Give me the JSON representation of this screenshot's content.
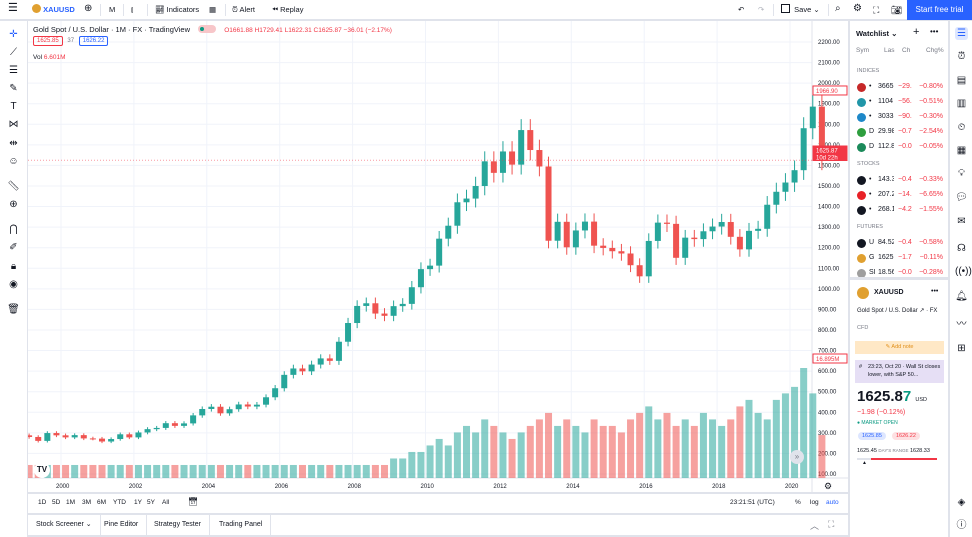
{
  "topbar": {
    "symbol": "XAUUSD",
    "interval": "M",
    "indicators": "Indicators",
    "alert": "Alert",
    "replay": "Replay",
    "save": "Save",
    "start_trial": "Start free trial"
  },
  "header": {
    "title": "Gold Spot / U.S. Dollar · 1M · FX · TradingView",
    "o": "O1661.88",
    "h": "H1729.41",
    "l": "L1622.31",
    "c": "C1625.87",
    "change": "−36.01 (−2.17%)",
    "bid": "1625.85",
    "spread": "37",
    "ask": "1626.22",
    "vol_label": "Vol",
    "vol_value": "6.601M"
  },
  "price_axis": {
    "labels": [
      "2200.00",
      "2100.00",
      "2000.00",
      "1900.00",
      "1800.00",
      "1700.00",
      "1600.00",
      "1500.00",
      "1400.00",
      "1300.00",
      "1200.00",
      "1100.00",
      "1000.00",
      "900.00",
      "800.00",
      "700.00",
      "600.00",
      "500.00",
      "400.00",
      "300.00",
      "200.00",
      "100.00"
    ],
    "high_marker": "1966.90",
    "current_price": "1625.87",
    "countdown": "10d 22h",
    "volume_marker": "16.895M"
  },
  "time_axis": {
    "labels": [
      "2000",
      "2002",
      "2004",
      "2006",
      "2008",
      "2010",
      "2012",
      "2014",
      "2016",
      "2018",
      "2020"
    ]
  },
  "range_bar": {
    "ranges": [
      "1D",
      "5D",
      "1M",
      "3M",
      "6M",
      "YTD",
      "1Y",
      "5Y",
      "All"
    ],
    "clock": "23:21:51 (UTC)",
    "pct": "%",
    "log": "log",
    "auto": "auto"
  },
  "bottom_tabs": [
    "Stock Screener",
    "Pine Editor",
    "Strategy Tester",
    "Trading Panel"
  ],
  "colors": {
    "up": "#26a69a",
    "down": "#ef5350",
    "accent": "#2962ff"
  },
  "chart_data": {
    "type": "candlestick",
    "x_unit": "quarter",
    "start": "1999 Q1",
    "ylim": [
      100,
      2200
    ],
    "yscale": "linear",
    "grid": true,
    "closes": [
      280,
      261,
      299,
      288,
      278,
      289,
      273,
      272,
      258,
      270,
      293,
      278,
      302,
      318,
      324,
      347,
      334,
      346,
      385,
      416,
      427,
      395,
      415,
      438,
      428,
      437,
      473,
      517,
      582,
      613,
      599,
      632,
      662,
      650,
      743,
      834,
      917,
      930,
      880,
      869,
      916,
      927,
      1008,
      1096,
      1113,
      1244,
      1307,
      1421,
      1439,
      1500,
      1620,
      1564,
      1668,
      1604,
      1772,
      1675,
      1595,
      1234,
      1326,
      1202,
      1284,
      1327,
      1210,
      1199,
      1183,
      1172,
      1115,
      1061,
      1233,
      1322,
      1316,
      1151,
      1249,
      1242,
      1280,
      1303,
      1325,
      1253,
      1192,
      1282,
      1292,
      1409,
      1472,
      1517,
      1577,
      1781,
      1886,
      1625.87
    ],
    "first_open": 288,
    "volume_millions": [
      2,
      2,
      2,
      2,
      2,
      2,
      2,
      2,
      2,
      2,
      2,
      2,
      2,
      2,
      2,
      2,
      2,
      2,
      2,
      2,
      2,
      2,
      2,
      2,
      2,
      2,
      2,
      2,
      2,
      2,
      2,
      2,
      2,
      2,
      2,
      2,
      2,
      2,
      2,
      2,
      3,
      3,
      4,
      4,
      5,
      6,
      5,
      7,
      8,
      7,
      9,
      8,
      7,
      6,
      7,
      8,
      9,
      10,
      8,
      9,
      8,
      7,
      9,
      8,
      8,
      7,
      9,
      10,
      11,
      9,
      10,
      8,
      9,
      8,
      10,
      9,
      8,
      9,
      11,
      12,
      10,
      9,
      12,
      13,
      14,
      16.9,
      13,
      6.6
    ]
  },
  "watchlist": {
    "title": "Watchlist",
    "columns": [
      "Sym",
      "Las",
      "Ch",
      "Chg%"
    ],
    "sections": [
      {
        "name": "INDICES",
        "items": [
          {
            "sym": "•",
            "last": "3665",
            "ch": "−29.",
            "pct": "−0.80%",
            "color": "#c62828"
          },
          {
            "sym": "•",
            "last": "1104",
            "ch": "−56.",
            "pct": "−0.51%",
            "color": "#2196a8"
          },
          {
            "sym": "•",
            "last": "3033",
            "ch": "−90.",
            "pct": "−0.30%",
            "color": "#1e88c8"
          },
          {
            "sym": "D",
            "last": "29.98",
            "ch": "−0.7",
            "pct": "−2.54%",
            "color": "#2e9e3e"
          },
          {
            "sym": "D",
            "last": "112.8",
            "ch": "−0.0",
            "pct": "−0.05%",
            "color": "#1b8a5a"
          }
        ]
      },
      {
        "name": "STOCKS",
        "items": [
          {
            "sym": "•",
            "last": "143.3",
            "ch": "−0.4",
            "pct": "−0.33%",
            "color": "#131722"
          },
          {
            "sym": "•",
            "last": "207.2",
            "ch": "−14.",
            "pct": "−6.65%",
            "color": "#e82127"
          },
          {
            "sym": "•",
            "last": "268.1",
            "ch": "−4.2",
            "pct": "−1.55%",
            "color": "#131722"
          }
        ]
      },
      {
        "name": "FUTURES",
        "items": [
          {
            "sym": "U",
            "last": "84.52",
            "ch": "−0.4",
            "pct": "−0.58%",
            "color": "#131722"
          },
          {
            "sym": "G",
            "last": "1625",
            "ch": "−1.7",
            "pct": "−0.11%",
            "color": "#e0a030"
          },
          {
            "sym": "SI",
            "last": "18.56",
            "ch": "−0.0",
            "pct": "−0.28%",
            "color": "#9e9e9e"
          }
        ]
      }
    ]
  },
  "details": {
    "symbol": "XAUUSD",
    "name": "Gold Spot / U.S. Dollar",
    "exchange": "FX",
    "type": "CFD",
    "add_note": "Add note",
    "news": "23:23, Oct 20 · Wall St closes lower, with S&P 50...",
    "price_main": "1625.8",
    "price_last": "7",
    "currency": "USD",
    "change": "−1.98 (−0.12%)",
    "market_status": "MARKET OPEN",
    "bid": "1625.85",
    "ask": "1626.22",
    "range_low": "1625.45",
    "range_label": "DAY'S RANGE",
    "range_high": "1628.33"
  }
}
